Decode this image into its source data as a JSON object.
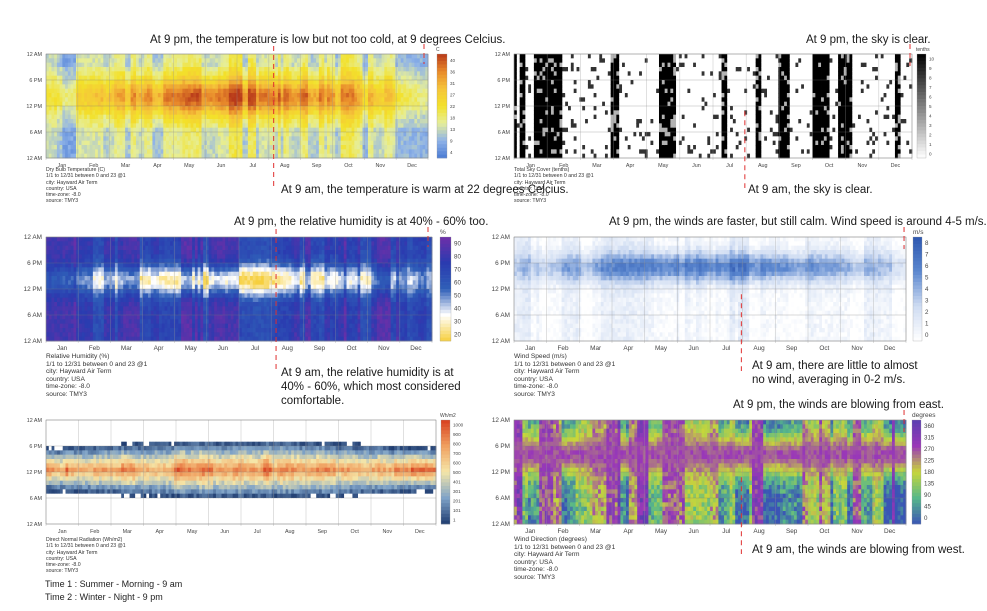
{
  "chart_data": [
    {
      "type": "heatmap",
      "title": "Dry Bulb Temperature (C)",
      "unit": "C",
      "xlabels": [
        "Jan",
        "Feb",
        "Mar",
        "Apr",
        "May",
        "Jun",
        "Jul",
        "Aug",
        "Sep",
        "Oct",
        "Nov",
        "Dec"
      ],
      "ylabels": [
        "12 AM",
        "6 PM",
        "12 PM",
        "6 AM",
        "12 AM"
      ],
      "colorbar_ticks": [
        "40",
        "36",
        "31",
        "27",
        "22",
        "18",
        "13",
        "9",
        "4"
      ],
      "colormap": [
        "#4a7bd4",
        "#8fb3e8",
        "#e6ee9a",
        "#f3e12a",
        "#f5c43a",
        "#e8892b",
        "#b83a1a"
      ],
      "value_range": [
        4,
        40
      ],
      "info": [
        "Dry Bulb Temperature (C)",
        "1/1 to 12/31 between 0 and 23 @1",
        "city: Hayward Air Term",
        "country: USA",
        "time-zone: -8.0",
        "source: TMY3"
      ],
      "annotation_top": "At 9 pm, the temperature is low but not too cold, at 9 degrees Celcius.",
      "annotation_bottom": "At 9 am, the temperature is warm at 22 degrees Celcius."
    },
    {
      "type": "heatmap",
      "title": "Total Sky Cover (tenths)",
      "unit": "tenths",
      "xlabels": [
        "Jan",
        "Feb",
        "Mar",
        "Apr",
        "May",
        "Jun",
        "Jul",
        "Aug",
        "Sep",
        "Oct",
        "Nov",
        "Dec"
      ],
      "ylabels": [
        "12 AM",
        "6 PM",
        "12 PM",
        "6 AM",
        "12 AM"
      ],
      "colorbar_ticks": [
        "10",
        "9",
        "8",
        "7",
        "6",
        "5",
        "4",
        "3",
        "2",
        "1",
        "0"
      ],
      "colormap": [
        "#ffffff",
        "#000000"
      ],
      "value_range": [
        0,
        10
      ],
      "info": [
        "Total Sky Cover (tenths)",
        "1/1 to 12/31 between 0 and 23 @1",
        "city: Hayward Air Term",
        "country: USA",
        "time-zone: -8.0",
        "source: TMY3"
      ],
      "annotation_top": "At 9 pm, the sky is clear.",
      "annotation_bottom": "At 9 am, the sky is clear."
    },
    {
      "type": "heatmap",
      "title": "Relative Humidity (%)",
      "unit": "%",
      "xlabels": [
        "Jan",
        "Feb",
        "Mar",
        "Apr",
        "May",
        "Jun",
        "Jul",
        "Aug",
        "Sep",
        "Oct",
        "Nov",
        "Dec"
      ],
      "ylabels": [
        "12 AM",
        "6 PM",
        "12 PM",
        "6 AM",
        "12 AM"
      ],
      "colorbar_ticks": [
        "90",
        "80",
        "70",
        "60",
        "50",
        "40",
        "30",
        "20"
      ],
      "colormap": [
        "#f6cf3e",
        "#ffffff",
        "#2f5fb8",
        "#2a3bb0",
        "#6f2fa8"
      ],
      "value_range": [
        20,
        100
      ],
      "info": [
        "Relative Humidity (%)",
        "1/1 to 12/31 between 0 and 23 @1",
        "city: Hayward Air Term",
        "country: USA",
        "time-zone: -8.0",
        "source: TMY3"
      ],
      "annotation_top": "At 9 pm, the relative humidity is at 40% - 60% too.",
      "annotation_bottom": "At 9 am, the relative humidity is at 40% - 60%, which most considered comfortable."
    },
    {
      "type": "heatmap",
      "title": "Wind Speed (m/s)",
      "unit": "m/s",
      "xlabels": [
        "Jan",
        "Feb",
        "Mar",
        "Apr",
        "May",
        "Jun",
        "Jul",
        "Aug",
        "Sep",
        "Oct",
        "Nov",
        "Dec"
      ],
      "ylabels": [
        "12 AM",
        "6 PM",
        "12 PM",
        "6 AM",
        "12 AM"
      ],
      "colorbar_ticks": [
        "8",
        "7",
        "6",
        "5",
        "4",
        "3",
        "2",
        "1",
        "0"
      ],
      "colormap": [
        "#ffffff",
        "#cfdcf2",
        "#5b87cf",
        "#2e58b0"
      ],
      "value_range": [
        0,
        8
      ],
      "info": [
        "Wind Speed (m/s)",
        "1/1 to 12/31 between 0 and 23 @1",
        "city: Hayward Air Term",
        "country: USA",
        "time-zone: -8.0",
        "source: TMY3"
      ],
      "annotation_top": "At 9 pm, the winds are faster, but still calm. Wind speed is around 4-5 m/s.",
      "annotation_bottom": "At 9 am, there are little to almost no wind, averaging in 0-2 m/s."
    },
    {
      "type": "heatmap",
      "title": "Direct Normal Radiation (Wh/m2)",
      "unit": "Wh/m2",
      "xlabels": [
        "Jan",
        "Feb",
        "Mar",
        "Apr",
        "May",
        "Jun",
        "Jul",
        "Aug",
        "Sep",
        "Oct",
        "Nov",
        "Dec"
      ],
      "ylabels": [
        "12 AM",
        "6 PM",
        "12 PM",
        "6 AM",
        "12 AM"
      ],
      "colorbar_ticks": [
        "1000",
        "900",
        "800",
        "700",
        "600",
        "500",
        "401",
        "301",
        "201",
        "101",
        "1"
      ],
      "colormap": [
        "#1f3c70",
        "#7fa3c8",
        "#f5e6a8",
        "#f0a060",
        "#d8401f"
      ],
      "value_range": [
        1,
        1000
      ],
      "info": [
        "Direct Normal Radiation (Wh/m2)",
        "1/1 to 12/31 between 0 and 23 @1",
        "city: Hayward Air Term",
        "country: USA",
        "time-zone: -8.0",
        "source: TMY3"
      ]
    },
    {
      "type": "heatmap",
      "title": "Wind Direction (degrees)",
      "unit": "degrees",
      "xlabels": [
        "Jan",
        "Feb",
        "Mar",
        "Apr",
        "May",
        "Jun",
        "Jul",
        "Aug",
        "Sep",
        "Oct",
        "Nov",
        "Dec"
      ],
      "ylabels": [
        "12 AM",
        "6 PM",
        "12 PM",
        "6 AM",
        "12 AM"
      ],
      "colorbar_ticks": [
        "360",
        "315",
        "270",
        "225",
        "180",
        "135",
        "90",
        "45",
        "0"
      ],
      "colormap": [
        "#3a55b5",
        "#57b889",
        "#c8d63a",
        "#9a38b8",
        "#5a3fb0"
      ],
      "value_range": [
        0,
        360
      ],
      "info": [
        "Wind Direction (degrees)",
        "1/1 to 12/31 between 0 and 23 @1",
        "city: Hayward Air Term",
        "country: USA",
        "time-zone: -8.0",
        "source: TMY3"
      ],
      "annotation_top": "At 9 pm, the winds are blowing from east.",
      "annotation_bottom": "At 9 am, the winds are blowing from west."
    }
  ],
  "legend": {
    "time1": "Time 1 : Summer - Morning - 9 am",
    "time2": "Time 2 : Winter - Night - 9 pm"
  },
  "colors": {
    "marker": "#e03030",
    "axis_label": "#555555",
    "info_text": "#333333"
  }
}
